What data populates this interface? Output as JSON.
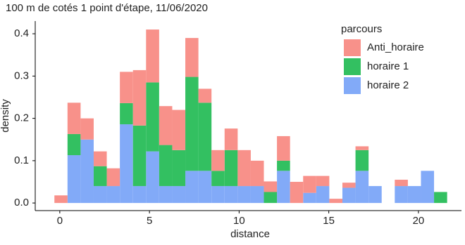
{
  "chart_data": {
    "type": "histogram",
    "title": "100 m de cotés 1 point d'étape, 11/06/2020",
    "x_label": "distance",
    "y_label": "density",
    "legend_title": "parcours",
    "bins": [
      -0.3,
      0.43,
      1.16,
      1.89,
      2.62,
      3.35,
      4.08,
      4.81,
      5.54,
      6.27,
      7,
      7.73,
      8.46,
      9.19,
      9.92,
      10.65,
      11.38,
      12.11,
      12.84,
      13.57,
      14.3,
      15.03,
      15.76,
      16.49,
      17.22,
      17.95,
      18.68,
      19.41,
      20.14,
      20.87,
      21.6
    ],
    "stacked": true,
    "series": [
      {
        "name": "Anti_horaire",
        "color": "#f8918a",
        "values": [
          0.018,
          0.074,
          0.05,
          0.035,
          0.042,
          0.074,
          0.131,
          0.125,
          0.092,
          0.095,
          0.092,
          0.033,
          0.049,
          0.051,
          0.085,
          0.06,
          0.025,
          0.058,
          0.05,
          0.04,
          0.024,
          0.01,
          0.012,
          0.009,
          0,
          0,
          0.015,
          0,
          0,
          0
        ]
      },
      {
        "name": "horaire 1",
        "color": "#33c061",
        "values": [
          0,
          0.05,
          0,
          0.047,
          0,
          0.05,
          0.143,
          0.163,
          0.097,
          0.085,
          0.222,
          0.161,
          0.036,
          0.085,
          0,
          0,
          0.026,
          0.024,
          0,
          0,
          0,
          0,
          0,
          0.049,
          0,
          0,
          0,
          0,
          0,
          0.026
        ]
      },
      {
        "name": "horaire 2",
        "color": "#82aaf8",
        "values": [
          0,
          0.113,
          0.15,
          0.04,
          0.04,
          0.186,
          0.04,
          0.122,
          0.04,
          0.04,
          0.076,
          0.076,
          0.04,
          0.04,
          0.04,
          0.04,
          0,
          0.076,
          0,
          0.024,
          0.04,
          0,
          0.036,
          0.076,
          0.04,
          0,
          0.04,
          0.04,
          0.076,
          0
        ]
      }
    ],
    "xlim": [
      -1.37,
      22.4
    ],
    "ylim": [
      -0.018,
      0.43
    ],
    "xticks": [
      0,
      5,
      10,
      15,
      20
    ],
    "yticks": [
      {
        "value": 0,
        "label": "0.0"
      },
      0.1,
      0.2,
      0.3,
      0.4
    ],
    "grid": false,
    "legend_position": "top-right"
  }
}
